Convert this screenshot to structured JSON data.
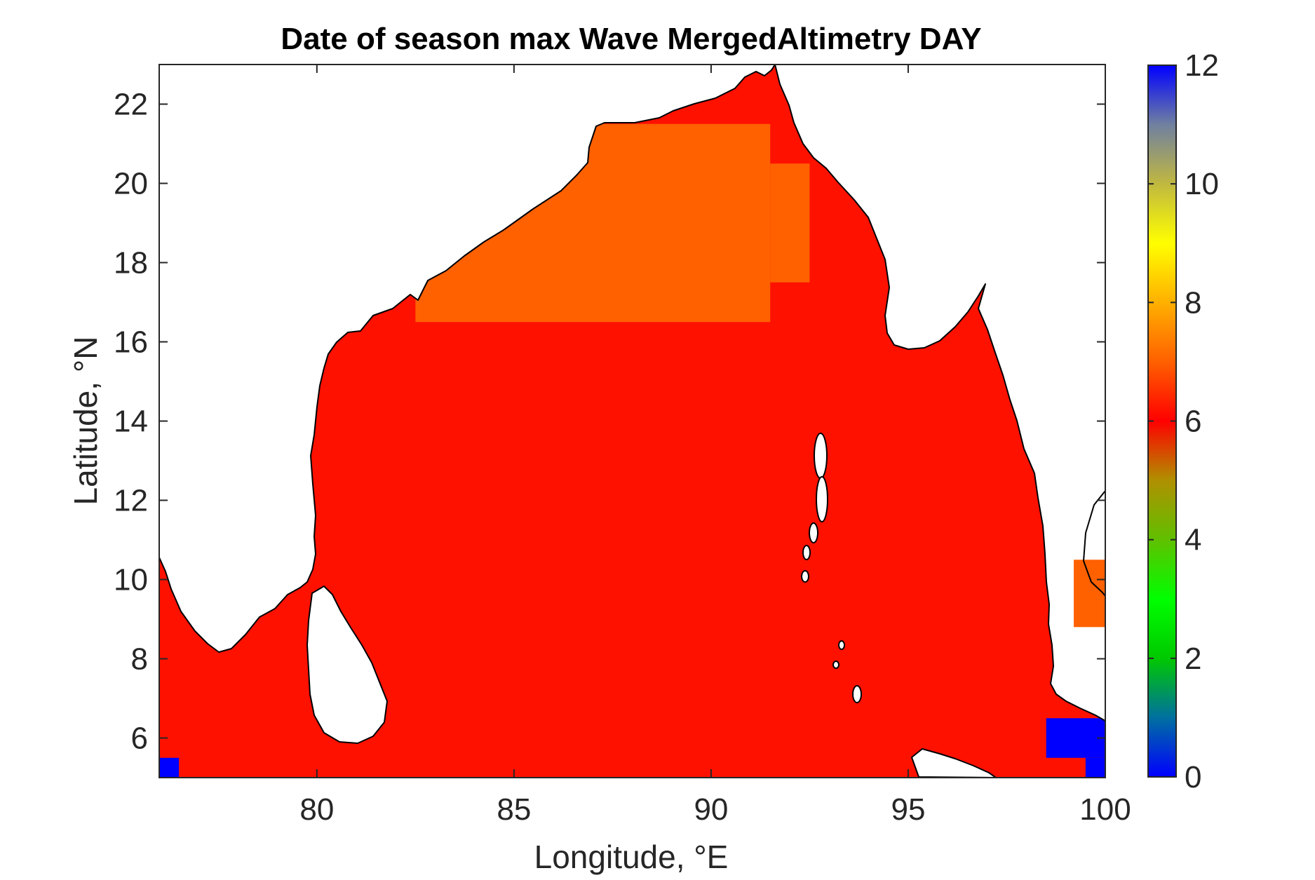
{
  "chart_data": {
    "type": "heatmap",
    "title": "Date of season max Wave MergedAltimetry DAY",
    "xlabel": "Longitude, °E",
    "ylabel": "Latitude, °N",
    "xlim": [
      76,
      100
    ],
    "ylim": [
      5,
      23
    ],
    "x_ticks": [
      80,
      85,
      90,
      95,
      100
    ],
    "y_ticks": [
      6,
      8,
      10,
      12,
      14,
      16,
      18,
      20,
      22
    ],
    "colorbar": {
      "range": [
        0,
        12
      ],
      "ticks": [
        0,
        2,
        4,
        6,
        8,
        10,
        12
      ],
      "colormap": [
        "#0000ff",
        "#0070a0",
        "#00c800",
        "#00ff00",
        "#60c000",
        "#b09000",
        "#ff0000",
        "#ff6000",
        "#ffb000",
        "#ffff00",
        "#c0b840",
        "#7080a0",
        "#0000ff"
      ]
    },
    "background_value": 6,
    "cells": [
      {
        "lon": [
          82.5,
          91.5
        ],
        "lat": [
          16.5,
          21.5
        ],
        "value": 7
      },
      {
        "lon": [
          91.5,
          92.5
        ],
        "lat": [
          17.5,
          20.5
        ],
        "value": 7
      },
      {
        "lon": [
          98.5,
          100
        ],
        "lat": [
          5.5,
          6.5
        ],
        "value": 0
      },
      {
        "lon": [
          99.5,
          100
        ],
        "lat": [
          5.0,
          5.5
        ],
        "value": 0
      },
      {
        "lon": [
          76,
          76.5
        ],
        "lat": [
          5.0,
          5.5
        ],
        "value": 0
      },
      {
        "lon": [
          99.2,
          100
        ],
        "lat": [
          8.8,
          10.5
        ],
        "value": 7
      }
    ]
  },
  "colors": {
    "day6": "#ff1100",
    "day7": "#ff6000",
    "day0": "#0000ff",
    "land": "#ffffff",
    "coast": "#000000"
  }
}
